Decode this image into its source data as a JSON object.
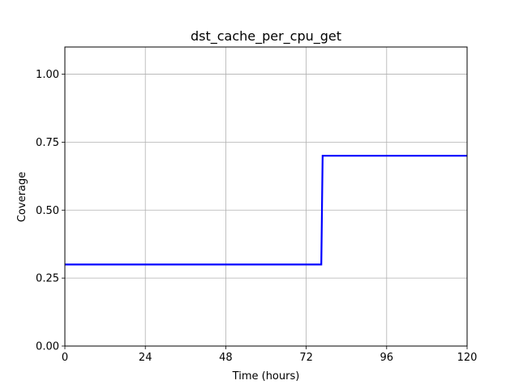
{
  "chart_data": {
    "type": "line",
    "title": "dst_cache_per_cpu_get",
    "xlabel": "Time (hours)",
    "ylabel": "Coverage",
    "xlim": [
      0,
      120
    ],
    "ylim": [
      0,
      1.1
    ],
    "x_ticks": [
      0,
      24,
      48,
      72,
      96,
      120
    ],
    "x_tick_labels": [
      "0",
      "24",
      "48",
      "72",
      "96",
      "120"
    ],
    "y_ticks": [
      0.0,
      0.25,
      0.5,
      0.75,
      1.0
    ],
    "y_tick_labels": [
      "0.00",
      "0.25",
      "0.50",
      "0.75",
      "1.00"
    ],
    "grid": true,
    "series": [
      {
        "color": "#0000ff",
        "x": [
          0,
          76.5,
          76.9,
          120
        ],
        "y": [
          0.3,
          0.3,
          0.7,
          0.7
        ]
      }
    ]
  },
  "colors": {
    "grid": "#b0b0b0",
    "axes": "#000000",
    "background": "#ffffff"
  }
}
